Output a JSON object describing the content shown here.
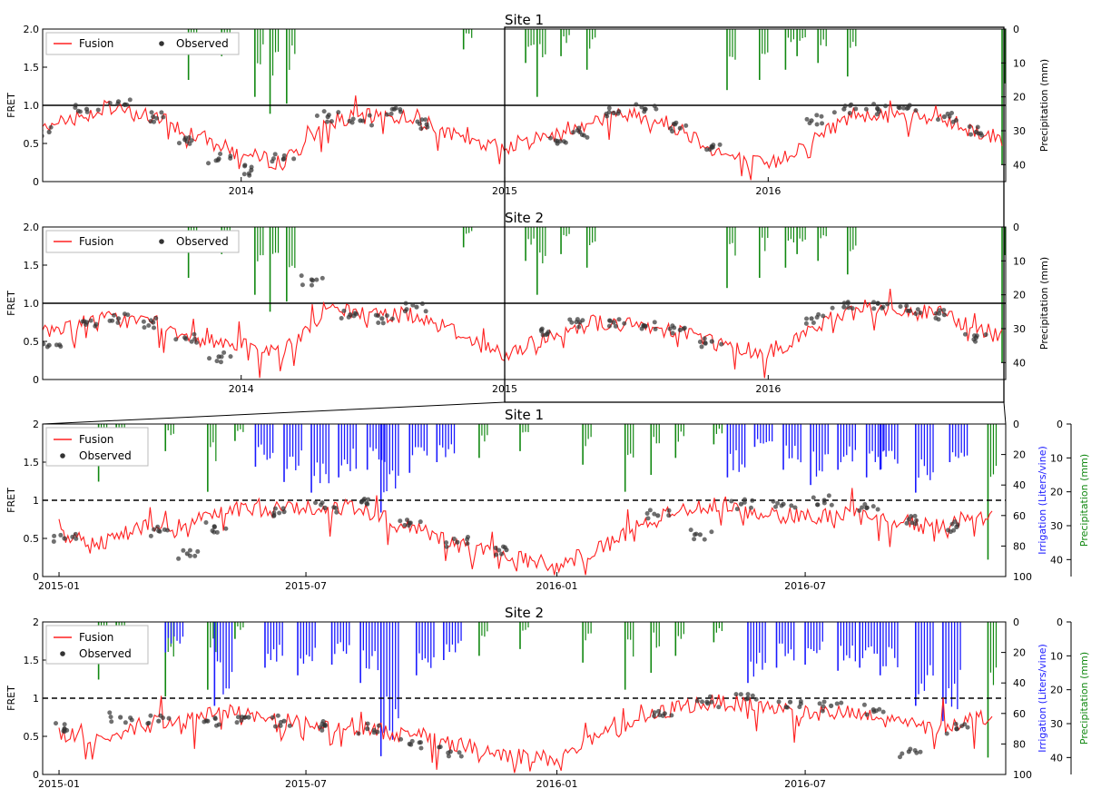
{
  "colors": {
    "fusion": "#ff2020",
    "observed": "#333333",
    "precipitation": "#118811",
    "irrigation": "#1a1aff",
    "reference_line": "#000000"
  },
  "chart_data": [
    {
      "type": "line",
      "title": "Site 1",
      "ylabel": "FRET",
      "ylabel_right": "Precipitation (mm)",
      "ylim": [
        0,
        2.0
      ],
      "y_right_lim": [
        45,
        0
      ],
      "y_ticks": [
        "0",
        "0.5",
        "1.0",
        "1.5",
        "2.0"
      ],
      "y_right_ticks": [
        "0",
        "10",
        "20",
        "30",
        "40"
      ],
      "x_range": [
        "2013-04-01",
        "2016-11-25"
      ],
      "x_ticks": [
        "2014",
        "2015",
        "2016"
      ],
      "reference_line": {
        "y": 1.0,
        "style": "solid"
      },
      "legend": {
        "placement": "top-left",
        "entries": [
          "Fusion",
          "Observed"
        ]
      },
      "grid": false,
      "series": [
        {
          "name": "Fusion",
          "kind": "line",
          "x": [
            "2013-04-01",
            "2013-05-15",
            "2013-07-01",
            "2013-09-01",
            "2013-11-01",
            "2014-01-01",
            "2014-03-01",
            "2014-05-01",
            "2014-07-01",
            "2014-09-01",
            "2014-11-01",
            "2015-01-01",
            "2015-03-01",
            "2015-05-01",
            "2015-07-01",
            "2015-09-01",
            "2015-11-01",
            "2016-01-01",
            "2016-03-01",
            "2016-05-01",
            "2016-07-01",
            "2016-09-01",
            "2016-11-20"
          ],
          "values": [
            0.7,
            0.85,
            0.95,
            0.85,
            0.6,
            0.35,
            0.25,
            0.8,
            0.85,
            0.85,
            0.55,
            0.45,
            0.6,
            0.8,
            0.9,
            0.7,
            0.35,
            0.2,
            0.55,
            0.9,
            0.85,
            0.8,
            0.55
          ]
        },
        {
          "name": "Observed",
          "kind": "scatter",
          "x": [
            "2013-04-10",
            "2013-06-01",
            "2013-07-15",
            "2013-09-01",
            "2013-10-15",
            "2013-12-01",
            "2014-01-15",
            "2014-03-01",
            "2014-05-01",
            "2014-06-15",
            "2014-08-01",
            "2014-09-15",
            "2015-03-15",
            "2015-04-15",
            "2015-06-01",
            "2015-07-15",
            "2015-09-01",
            "2015-10-15",
            "2016-03-01",
            "2016-04-15",
            "2016-06-01",
            "2016-07-15",
            "2016-09-01",
            "2016-10-15"
          ],
          "values": [
            0.65,
            0.95,
            1.05,
            0.85,
            0.55,
            0.3,
            0.15,
            0.3,
            0.85,
            0.8,
            0.95,
            0.75,
            0.5,
            0.65,
            0.9,
            0.95,
            0.7,
            0.45,
            0.8,
            0.95,
            0.95,
            1.0,
            0.85,
            0.65
          ]
        },
        {
          "name": "Precipitation",
          "kind": "bars",
          "axis": "right",
          "x": [
            "2013-10-20",
            "2013-12-05",
            "2014-01-20",
            "2014-02-10",
            "2014-03-05",
            "2014-11-05",
            "2015-01-30",
            "2015-02-15",
            "2015-03-20",
            "2015-04-25",
            "2015-11-05",
            "2015-12-20",
            "2016-01-25",
            "2016-02-10",
            "2016-03-10",
            "2016-04-20",
            "2016-11-20"
          ],
          "values": [
            15,
            8,
            20,
            25,
            22,
            6,
            10,
            20,
            8,
            12,
            18,
            15,
            12,
            8,
            10,
            14,
            40
          ]
        }
      ]
    },
    {
      "type": "line",
      "title": "Site 2",
      "ylabel": "FRET",
      "ylabel_right": "Precipitation (mm)",
      "ylim": [
        0,
        2.0
      ],
      "y_right_lim": [
        45,
        0
      ],
      "y_ticks": [
        "0",
        "0.5",
        "1.0",
        "1.5",
        "2.0"
      ],
      "y_right_ticks": [
        "0",
        "10",
        "20",
        "30",
        "40"
      ],
      "x_range": [
        "2013-04-01",
        "2016-11-25"
      ],
      "x_ticks": [
        "2014",
        "2015",
        "2016"
      ],
      "reference_line": {
        "y": 1.0,
        "style": "solid"
      },
      "legend": {
        "placement": "top-left",
        "entries": [
          "Fusion",
          "Observed"
        ]
      },
      "grid": false,
      "series": [
        {
          "name": "Fusion",
          "kind": "line",
          "x": [
            "2013-04-01",
            "2013-05-15",
            "2013-07-01",
            "2013-09-01",
            "2013-11-01",
            "2014-01-01",
            "2014-03-01",
            "2014-05-01",
            "2014-07-01",
            "2014-09-01",
            "2014-11-01",
            "2015-01-01",
            "2015-03-01",
            "2015-05-01",
            "2015-07-01",
            "2015-09-01",
            "2015-11-01",
            "2016-01-01",
            "2016-03-01",
            "2016-05-01",
            "2016-07-01",
            "2016-09-01",
            "2016-11-20"
          ],
          "values": [
            0.6,
            0.75,
            0.8,
            0.75,
            0.55,
            0.45,
            0.35,
            0.95,
            0.85,
            0.85,
            0.6,
            0.3,
            0.55,
            0.75,
            0.7,
            0.65,
            0.45,
            0.35,
            0.65,
            0.95,
            0.9,
            0.85,
            0.55
          ]
        },
        {
          "name": "Observed",
          "kind": "scatter",
          "x": [
            "2013-04-10",
            "2013-06-01",
            "2013-07-15",
            "2013-09-01",
            "2013-10-15",
            "2013-12-01",
            "2014-04-10",
            "2014-06-01",
            "2014-07-15",
            "2014-09-01",
            "2015-03-01",
            "2015-04-15",
            "2015-06-01",
            "2015-07-15",
            "2015-09-01",
            "2015-10-15",
            "2016-03-01",
            "2016-04-15",
            "2016-06-01",
            "2016-07-15",
            "2016-09-01",
            "2016-10-15"
          ],
          "values": [
            0.45,
            0.75,
            0.8,
            0.75,
            0.55,
            0.3,
            1.3,
            0.85,
            0.8,
            0.95,
            0.6,
            0.75,
            0.75,
            0.7,
            0.65,
            0.5,
            0.8,
            0.95,
            1.0,
            0.9,
            0.85,
            0.55
          ]
        },
        {
          "name": "Precipitation",
          "kind": "bars",
          "axis": "right",
          "x": [
            "2013-10-20",
            "2013-12-05",
            "2014-01-20",
            "2014-02-10",
            "2014-03-05",
            "2014-11-05",
            "2015-01-30",
            "2015-02-15",
            "2015-03-20",
            "2015-04-25",
            "2015-11-05",
            "2015-12-20",
            "2016-01-25",
            "2016-02-10",
            "2016-03-10",
            "2016-04-20",
            "2016-11-20"
          ],
          "values": [
            15,
            8,
            20,
            25,
            22,
            6,
            10,
            20,
            8,
            12,
            18,
            15,
            12,
            8,
            10,
            14,
            40
          ]
        }
      ]
    },
    {
      "type": "line",
      "title": "Site 1",
      "ylabel": "FRET",
      "ylabel_right": "Irrigation (Liters/vine)",
      "ylabel_right2": "Precipitation (mm)",
      "ylim": [
        0,
        2
      ],
      "y_right_lim": [
        100,
        0
      ],
      "y_right2_lim": [
        45,
        0
      ],
      "y_ticks": [
        "0",
        "0.5",
        "1",
        "1.5",
        "2"
      ],
      "y_right_ticks": [
        "0",
        "20",
        "40",
        "60",
        "80",
        "100"
      ],
      "y_right2_ticks": [
        "0",
        "10",
        "20",
        "30",
        "40"
      ],
      "x_range": [
        "2014-12-20",
        "2016-11-25"
      ],
      "x_ticks": [
        "2015-01",
        "2015-07",
        "2016-01",
        "2016-07"
      ],
      "reference_line": {
        "y": 1.0,
        "style": "dashed"
      },
      "legend": {
        "placement": "top-left",
        "entries": [
          "Fusion",
          "Observed"
        ]
      },
      "grid": false,
      "series": [
        {
          "name": "Fusion",
          "kind": "line",
          "x": [
            "2015-01-01",
            "2015-02-01",
            "2015-03-01",
            "2015-04-01",
            "2015-05-01",
            "2015-06-01",
            "2015-07-01",
            "2015-08-01",
            "2015-09-01",
            "2015-10-01",
            "2015-11-01",
            "2015-12-01",
            "2016-01-01",
            "2016-02-01",
            "2016-03-01",
            "2016-04-01",
            "2016-05-01",
            "2016-06-01",
            "2016-07-01",
            "2016-08-01",
            "2016-09-01",
            "2016-10-01",
            "2016-11-15"
          ],
          "values": [
            0.55,
            0.45,
            0.65,
            0.65,
            0.85,
            0.9,
            0.9,
            0.9,
            0.75,
            0.55,
            0.35,
            0.25,
            0.15,
            0.35,
            0.65,
            0.9,
            0.95,
            0.8,
            0.8,
            0.8,
            0.75,
            0.65,
            0.85
          ]
        },
        {
          "name": "Observed",
          "kind": "scatter",
          "x": [
            "2015-01-05",
            "2015-03-15",
            "2015-04-05",
            "2015-04-25",
            "2015-06-15",
            "2015-07-15",
            "2015-08-15",
            "2015-09-15",
            "2015-10-20",
            "2015-11-25",
            "2016-03-15",
            "2016-04-15",
            "2016-05-15",
            "2016-06-15",
            "2016-07-15",
            "2016-08-15",
            "2016-09-15",
            "2016-10-20"
          ],
          "values": [
            0.5,
            0.6,
            0.3,
            0.65,
            0.85,
            0.9,
            0.95,
            0.7,
            0.45,
            0.35,
            0.8,
            0.55,
            0.95,
            0.95,
            1.0,
            0.9,
            0.75,
            0.65
          ]
        },
        {
          "name": "Irrigation",
          "kind": "bars",
          "axis": "right",
          "x": [
            "2015-05-25",
            "2015-06-15",
            "2015-07-05",
            "2015-07-25",
            "2015-08-15",
            "2015-08-25",
            "2015-09-15",
            "2015-10-05",
            "2016-05-05",
            "2016-05-25",
            "2016-06-15",
            "2016-07-05",
            "2016-07-25",
            "2016-08-15",
            "2016-08-25",
            "2016-09-20",
            "2016-10-15"
          ],
          "values": [
            28,
            38,
            45,
            35,
            30,
            58,
            32,
            25,
            35,
            15,
            30,
            40,
            30,
            35,
            30,
            45,
            25
          ]
        },
        {
          "name": "Precipitation",
          "kind": "bars",
          "axis": "right2",
          "x": [
            "2015-01-30",
            "2015-02-12",
            "2015-03-20",
            "2015-04-20",
            "2015-05-10",
            "2015-11-05",
            "2015-12-05",
            "2016-01-20",
            "2016-02-20",
            "2016-03-10",
            "2016-03-28",
            "2016-04-25",
            "2016-11-12"
          ],
          "values": [
            17,
            12,
            8,
            20,
            5,
            10,
            8,
            12,
            20,
            15,
            10,
            6,
            40
          ]
        }
      ]
    },
    {
      "type": "line",
      "title": "Site 2",
      "ylabel": "FRET",
      "ylabel_right": "Irrigation (Liters/vine)",
      "ylabel_right2": "Precipitation (mm)",
      "ylim": [
        0,
        2
      ],
      "y_right_lim": [
        100,
        0
      ],
      "y_right2_lim": [
        45,
        0
      ],
      "y_ticks": [
        "0",
        "0.5",
        "1",
        "1.5",
        "2"
      ],
      "y_right_ticks": [
        "0",
        "20",
        "40",
        "60",
        "80",
        "100"
      ],
      "y_right2_ticks": [
        "0",
        "10",
        "20",
        "30",
        "40"
      ],
      "x_range": [
        "2014-12-20",
        "2016-11-25"
      ],
      "x_ticks": [
        "2015-01",
        "2015-07",
        "2016-01",
        "2016-07"
      ],
      "reference_line": {
        "y": 1.0,
        "style": "dashed"
      },
      "legend": {
        "placement": "top-left",
        "entries": [
          "Fusion",
          "Observed"
        ]
      },
      "grid": false,
      "series": [
        {
          "name": "Fusion",
          "kind": "line",
          "x": [
            "2015-01-01",
            "2015-02-01",
            "2015-03-01",
            "2015-04-01",
            "2015-05-01",
            "2015-06-01",
            "2015-07-01",
            "2015-08-01",
            "2015-09-01",
            "2015-10-01",
            "2015-11-01",
            "2015-12-01",
            "2016-01-01",
            "2016-02-01",
            "2016-03-01",
            "2016-04-01",
            "2016-05-01",
            "2016-06-01",
            "2016-07-01",
            "2016-08-01",
            "2016-09-01",
            "2016-10-01",
            "2016-11-15"
          ],
          "values": [
            0.55,
            0.45,
            0.65,
            0.7,
            0.85,
            0.75,
            0.65,
            0.65,
            0.55,
            0.45,
            0.35,
            0.25,
            0.2,
            0.5,
            0.7,
            0.9,
            0.95,
            0.9,
            0.8,
            0.8,
            0.7,
            0.6,
            0.8
          ]
        },
        {
          "name": "Observed",
          "kind": "scatter",
          "x": [
            "2015-01-05",
            "2015-02-15",
            "2015-03-15",
            "2015-04-20",
            "2015-05-20",
            "2015-06-15",
            "2015-07-15",
            "2015-08-15",
            "2015-09-15",
            "2015-10-15",
            "2016-03-20",
            "2016-04-20",
            "2016-05-20",
            "2016-06-20",
            "2016-07-20",
            "2016-08-20",
            "2016-09-15",
            "2016-10-20"
          ],
          "values": [
            0.6,
            0.75,
            0.7,
            0.7,
            0.75,
            0.7,
            0.65,
            0.6,
            0.4,
            0.3,
            0.8,
            0.95,
            1.0,
            0.95,
            0.9,
            0.85,
            0.3,
            0.6
          ]
        },
        {
          "name": "Irrigation",
          "kind": "bars",
          "axis": "right",
          "x": [
            "2015-03-20",
            "2015-04-25",
            "2015-06-01",
            "2015-06-25",
            "2015-07-20",
            "2015-08-10",
            "2015-08-25",
            "2015-09-20",
            "2015-10-10",
            "2016-05-20",
            "2016-06-10",
            "2016-07-01",
            "2016-07-25",
            "2016-08-10",
            "2016-08-25",
            "2016-09-20",
            "2016-10-10"
          ],
          "values": [
            20,
            55,
            30,
            35,
            28,
            40,
            88,
            35,
            25,
            40,
            30,
            28,
            32,
            30,
            35,
            55,
            65
          ]
        },
        {
          "name": "Precipitation",
          "kind": "bars",
          "axis": "right2",
          "x": [
            "2015-01-30",
            "2015-02-12",
            "2015-03-20",
            "2015-04-20",
            "2015-05-10",
            "2015-11-05",
            "2015-12-05",
            "2016-01-20",
            "2016-02-20",
            "2016-03-10",
            "2016-03-28",
            "2016-04-25",
            "2016-11-12"
          ],
          "values": [
            17,
            12,
            22,
            20,
            5,
            10,
            8,
            12,
            20,
            15,
            10,
            6,
            40
          ]
        }
      ]
    }
  ]
}
